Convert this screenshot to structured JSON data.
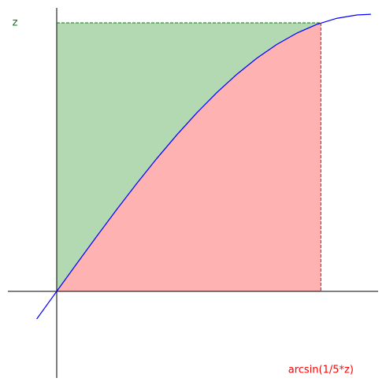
{
  "chart_data": {
    "type": "line",
    "x": [
      -0.1,
      0,
      0.1,
      0.2,
      0.3,
      0.4,
      0.5,
      0.6,
      0.7,
      0.8,
      0.9,
      1.0,
      1.1,
      1.2,
      1.3,
      1.4,
      1.5,
      1.57
    ],
    "series": [
      {
        "color": "#0000ff",
        "values": [
          -0.0998,
          0,
          0.0998,
          0.1987,
          0.2955,
          0.3894,
          0.4794,
          0.5646,
          0.6442,
          0.7174,
          0.7833,
          0.8415,
          0.8912,
          0.932,
          0.9636,
          0.9854,
          0.9975,
          1.0
        ]
      }
    ],
    "point": {
      "x": 1.32,
      "y": 0.969,
      "x_label": "arcsin(1/5*z)",
      "y_label": "z",
      "x_color": "#ff0000",
      "y_color": "#008000"
    },
    "xlim": [
      -0.244,
      1.606
    ],
    "ylim": [
      -0.3125,
      1.023
    ]
  }
}
